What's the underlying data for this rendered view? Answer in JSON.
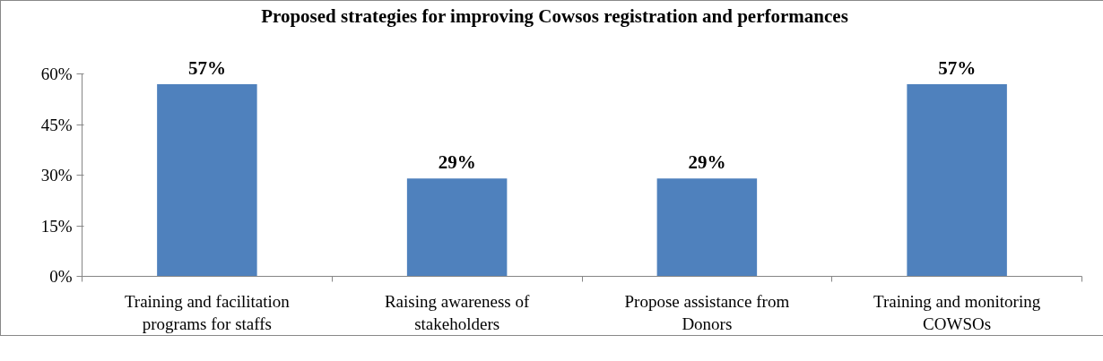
{
  "chart_data": {
    "type": "bar",
    "title": "Proposed strategies for improving Cowsos registration and performances",
    "categories": [
      "Training and facilitation programs for staffs",
      "Raising awareness of stakeholders",
      "Propose assistance from Donors",
      "Training and monitoring COWSOs"
    ],
    "values": [
      57,
      29,
      29,
      57
    ],
    "color": "#4f81bd",
    "value_labels": [
      "57%",
      "29%",
      "29%",
      "57%"
    ],
    "ylim": [
      0,
      60
    ],
    "yticks": [
      {
        "value": 0,
        "label": "0%"
      },
      {
        "value": 15,
        "label": "15%"
      },
      {
        "value": 30,
        "label": "30%"
      },
      {
        "value": 45,
        "label": "45%"
      },
      {
        "value": 60,
        "label": "60%"
      }
    ],
    "grid": false
  }
}
